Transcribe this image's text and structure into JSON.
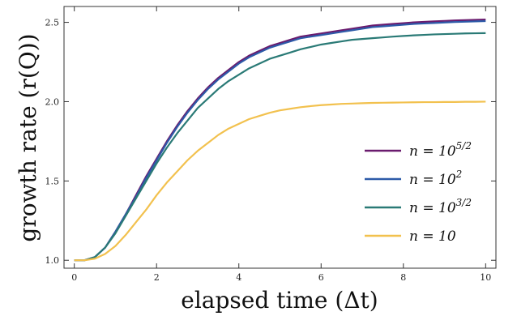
{
  "chart_data": {
    "type": "line",
    "title": "",
    "xlabel": "elapsed time (Δt)",
    "ylabel": "growth rate (r(Q))",
    "xlim": [
      -0.25,
      10.25
    ],
    "ylim": [
      0.95,
      2.6
    ],
    "xticks": [
      0,
      2,
      4,
      6,
      8,
      10
    ],
    "xtick_labels": [
      "0",
      "2",
      "4",
      "6",
      "8",
      "10"
    ],
    "yticks": [
      1.0,
      1.5,
      2.0,
      2.5
    ],
    "ytick_labels": [
      "1.0",
      "1.5",
      "2.0",
      "2.5"
    ],
    "grid": false,
    "legend_position": "lower-right",
    "x": [
      0,
      0.25,
      0.5,
      0.75,
      1,
      1.25,
      1.5,
      1.75,
      2,
      2.25,
      2.5,
      2.75,
      3,
      3.25,
      3.5,
      3.75,
      4,
      4.25,
      4.5,
      4.75,
      5,
      5.25,
      5.5,
      5.75,
      6,
      6.25,
      6.5,
      6.75,
      7,
      7.25,
      7.5,
      7.75,
      8,
      8.25,
      8.5,
      8.75,
      9,
      9.25,
      9.5,
      9.75,
      10
    ],
    "series": [
      {
        "name": "n = 10^{5/2}",
        "color": "#6a1b6e",
        "values": [
          1.0,
          1.0,
          1.02,
          1.08,
          1.18,
          1.29,
          1.41,
          1.53,
          1.64,
          1.75,
          1.85,
          1.94,
          2.02,
          2.09,
          2.15,
          2.2,
          2.25,
          2.29,
          2.32,
          2.35,
          2.37,
          2.39,
          2.41,
          2.42,
          2.43,
          2.44,
          2.45,
          2.46,
          2.47,
          2.48,
          2.485,
          2.49,
          2.495,
          2.5,
          2.503,
          2.506,
          2.509,
          2.512,
          2.514,
          2.516,
          2.518
        ]
      },
      {
        "name": "n = 10^{2}",
        "color": "#2d5aa8",
        "values": [
          1.0,
          1.0,
          1.02,
          1.08,
          1.18,
          1.29,
          1.4,
          1.52,
          1.63,
          1.74,
          1.84,
          1.93,
          2.01,
          2.08,
          2.14,
          2.19,
          2.24,
          2.28,
          2.31,
          2.34,
          2.36,
          2.38,
          2.4,
          2.41,
          2.42,
          2.43,
          2.44,
          2.45,
          2.46,
          2.47,
          2.475,
          2.48,
          2.485,
          2.49,
          2.493,
          2.496,
          2.499,
          2.502,
          2.504,
          2.506,
          2.508
        ]
      },
      {
        "name": "n = 10^{3/2}",
        "color": "#2a7a76",
        "values": [
          1.0,
          1.0,
          1.02,
          1.08,
          1.17,
          1.28,
          1.39,
          1.5,
          1.61,
          1.71,
          1.8,
          1.88,
          1.96,
          2.02,
          2.08,
          2.13,
          2.17,
          2.21,
          2.24,
          2.27,
          2.29,
          2.31,
          2.33,
          2.345,
          2.36,
          2.37,
          2.38,
          2.39,
          2.395,
          2.4,
          2.405,
          2.41,
          2.414,
          2.418,
          2.421,
          2.424,
          2.426,
          2.428,
          2.43,
          2.431,
          2.432
        ]
      },
      {
        "name": "n = 10",
        "color": "#f2c14e",
        "values": [
          1.0,
          1.0,
          1.01,
          1.04,
          1.09,
          1.16,
          1.24,
          1.32,
          1.41,
          1.49,
          1.56,
          1.63,
          1.69,
          1.74,
          1.79,
          1.83,
          1.86,
          1.89,
          1.91,
          1.93,
          1.945,
          1.955,
          1.965,
          1.972,
          1.978,
          1.982,
          1.986,
          1.988,
          1.99,
          1.992,
          1.993,
          1.994,
          1.995,
          1.996,
          1.997,
          1.997,
          1.998,
          1.998,
          1.999,
          1.999,
          2.0
        ]
      }
    ]
  }
}
